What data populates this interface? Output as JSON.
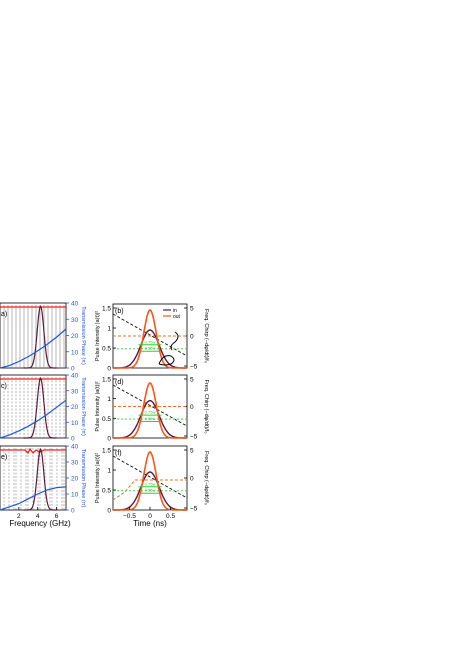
{
  "colors": {
    "in": "#5a1a3a",
    "out": "#f05a1e",
    "transmission_phase": "#2255dd",
    "magnitude": "#ee2222",
    "chirp": "#222222",
    "chirp_out": "#f07020",
    "level": "#33cc33",
    "grating": "#888888"
  },
  "labels": {
    "left_xlabel": "Frequency (GHz)",
    "left_ylabel": "Transmission Phase (π)",
    "right_xlabel": "Time (ns)",
    "right_ylabel": "Pulse Intensity |a(t)|²",
    "right_ylabel2": "Freq. Chirp (−dφ/dt)/f₀"
  },
  "chart_data": [
    {
      "panel": "a",
      "type": "line",
      "x": [
        0,
        1,
        2,
        3,
        4,
        5,
        6,
        7
      ],
      "xticks": [
        "2",
        "4",
        "6"
      ],
      "xlim": [
        0,
        7
      ],
      "yticks": [
        "0",
        "10",
        "20",
        "30",
        "40"
      ],
      "ylim": [
        0,
        40
      ],
      "ylabel": "Transmission Phase (π)",
      "series": [
        {
          "name": "Transmission Phase",
          "values": [
            0,
            1.5,
            4,
            7,
            10.5,
            14.5,
            19,
            24
          ]
        }
      ]
    },
    {
      "panel": "b",
      "type": "line",
      "x": [
        -0.8,
        -0.6,
        -0.4,
        -0.2,
        0,
        0.2,
        0.4,
        0.6,
        0.8
      ],
      "xticks": [
        "−0.5",
        "0",
        "0.5"
      ],
      "xlim": [
        -0.9,
        0.9
      ],
      "yticks": [
        "0",
        "0.5",
        "1",
        "1.5"
      ],
      "ylim": [
        0,
        1.5
      ],
      "y2ticks": [
        "5",
        "0",
        "−5"
      ],
      "legend": [
        "in",
        "out"
      ],
      "levels": [
        "0.75w",
        "0.55w"
      ],
      "series": [
        {
          "name": "in",
          "values": [
            0.02,
            0.1,
            0.35,
            0.75,
            0.95,
            0.75,
            0.35,
            0.1,
            0.02
          ]
        },
        {
          "name": "out",
          "values": [
            0.01,
            0.06,
            0.35,
            1.0,
            1.45,
            1.0,
            0.35,
            0.06,
            0.01
          ]
        }
      ]
    },
    {
      "panel": "c",
      "type": "line",
      "x": [
        0,
        1,
        2,
        3,
        4,
        5,
        6,
        7
      ],
      "yticks": [
        "0",
        "10",
        "20",
        "30",
        "40"
      ],
      "ylim": [
        0,
        40
      ],
      "ylabel": "Transmission Phase (π)",
      "series": [
        {
          "name": "Transmission Phase",
          "values": [
            0,
            2,
            4.5,
            7.5,
            11,
            15,
            19.5,
            24
          ]
        }
      ]
    },
    {
      "panel": "d",
      "type": "line",
      "x": [
        -0.8,
        -0.6,
        -0.4,
        -0.2,
        0,
        0.2,
        0.4,
        0.6,
        0.8
      ],
      "yticks": [
        "0",
        "0.5",
        "1",
        "1.5"
      ],
      "ylim": [
        0,
        1.5
      ],
      "y2ticks": [
        "5",
        "0",
        "−5"
      ],
      "levels": [
        "0.75w",
        "0.55w"
      ],
      "series": [
        {
          "name": "in",
          "values": [
            0.02,
            0.1,
            0.35,
            0.75,
            0.95,
            0.75,
            0.35,
            0.1,
            0.02
          ]
        },
        {
          "name": "out",
          "values": [
            0.01,
            0.06,
            0.35,
            1.0,
            1.4,
            1.0,
            0.35,
            0.06,
            0.01
          ]
        }
      ]
    },
    {
      "panel": "e",
      "type": "line",
      "x": [
        0,
        1,
        2,
        3,
        4,
        5,
        6,
        7
      ],
      "yticks": [
        "0",
        "10",
        "20",
        "30",
        "40"
      ],
      "ylim": [
        0,
        40
      ],
      "ylabel": "Transmission Phase (π)",
      "series": [
        {
          "name": "Transmission Phase",
          "values": [
            0,
            2,
            4,
            7,
            10,
            12.5,
            14,
            14.5
          ]
        }
      ]
    },
    {
      "panel": "f",
      "type": "line",
      "x": [
        -0.8,
        -0.6,
        -0.4,
        -0.2,
        0,
        0.2,
        0.4,
        0.6,
        0.8
      ],
      "yticks": [
        "0",
        "0.5",
        "1",
        "1.5"
      ],
      "ylim": [
        0,
        1.5
      ],
      "y2ticks": [
        "5",
        "0",
        "−5"
      ],
      "levels": [
        "0.75w",
        "0.55w"
      ],
      "series": [
        {
          "name": "in",
          "values": [
            0.02,
            0.1,
            0.35,
            0.75,
            0.95,
            0.75,
            0.35,
            0.1,
            0.02
          ]
        },
        {
          "name": "out",
          "values": [
            0.01,
            0.06,
            0.35,
            1.0,
            1.45,
            1.0,
            0.35,
            0.06,
            0.01
          ]
        }
      ]
    }
  ]
}
